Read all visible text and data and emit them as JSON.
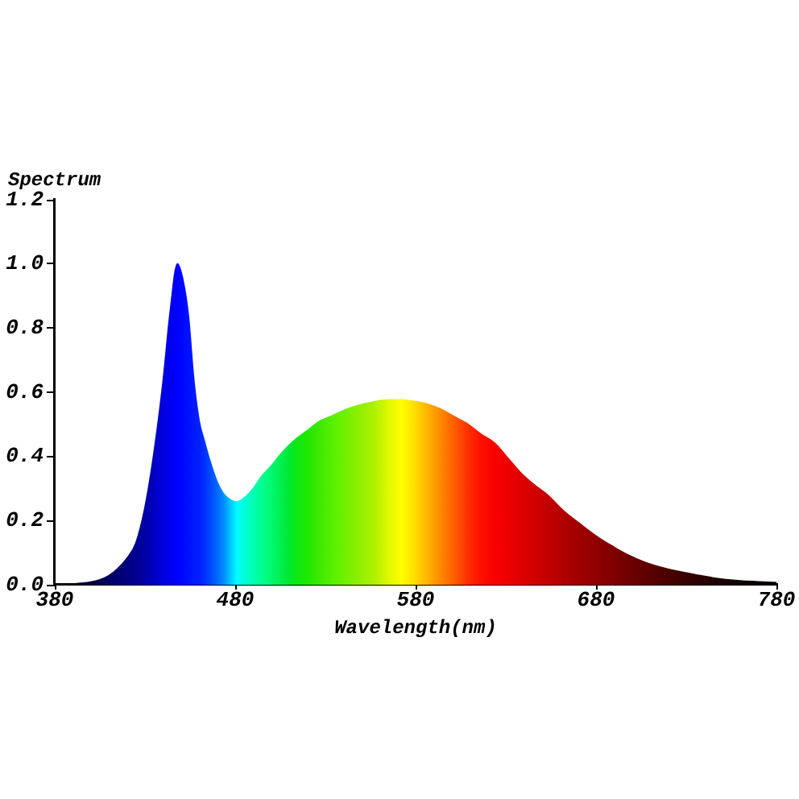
{
  "chart_data": {
    "type": "area",
    "xlabel": "Wavelength(nm)",
    "ylabel": "Spectrum",
    "x": [
      380,
      390,
      400,
      405,
      410,
      415,
      420,
      425,
      430,
      435,
      440,
      444,
      448,
      451,
      454,
      457,
      460,
      463,
      466,
      470,
      474,
      478,
      481,
      486,
      490,
      495,
      500,
      505,
      510,
      515,
      520,
      527,
      534,
      541,
      549,
      557,
      565,
      572,
      579,
      587,
      594,
      601,
      609,
      616,
      624,
      631,
      638,
      646,
      653,
      662,
      671,
      680,
      689,
      698,
      707,
      716,
      725,
      735,
      745,
      760,
      770,
      780
    ],
    "series": [
      {
        "values": [
          0,
          0.002,
          0.008,
          0.015,
          0.028,
          0.05,
          0.082,
          0.13,
          0.24,
          0.41,
          0.63,
          0.85,
          1.0,
          0.95,
          0.84,
          0.64,
          0.51,
          0.445,
          0.385,
          0.32,
          0.28,
          0.262,
          0.258,
          0.275,
          0.3,
          0.34,
          0.37,
          0.405,
          0.435,
          0.46,
          0.48,
          0.51,
          0.527,
          0.545,
          0.56,
          0.57,
          0.576,
          0.576,
          0.571,
          0.562,
          0.547,
          0.525,
          0.5,
          0.47,
          0.44,
          0.395,
          0.35,
          0.31,
          0.28,
          0.23,
          0.19,
          0.152,
          0.12,
          0.092,
          0.07,
          0.054,
          0.042,
          0.031,
          0.021,
          0.012,
          0.009,
          0.006
        ],
        "colors": [
          "#000010",
          "#000020",
          "#000040",
          "#000050",
          "#000060",
          "#000070",
          "#000080",
          "#000090",
          "#0000a8",
          "#0000c0",
          "#0000e0",
          "#0000f0",
          "#0000ff",
          "#0008ff",
          "#0010ff",
          "#0018ff",
          "#0020ff",
          "#0030ff",
          "#0048ff",
          "#0068ff",
          "#0090ff",
          "#00d0ff",
          "#00ffff",
          "#00ffd0",
          "#00ffb0",
          "#00ff90",
          "#00f870",
          "#00f050",
          "#00e830",
          "#10e810",
          "#20e800",
          "#40e800",
          "#58f000",
          "#70f000",
          "#90f000",
          "#b0f000",
          "#e0f800",
          "#ffff00",
          "#ffe000",
          "#ffb000",
          "#ff8800",
          "#ff6000",
          "#ff3000",
          "#ff1000",
          "#f80000",
          "#f00000",
          "#e00000",
          "#d00000",
          "#c40000",
          "#b00000",
          "#a00000",
          "#900000",
          "#800000",
          "#700000",
          "#600000",
          "#500000",
          "#400000",
          "#300000",
          "#200000",
          "#100000",
          "#080000",
          "#000000"
        ]
      }
    ],
    "xlim": [
      380,
      780
    ],
    "ylim": [
      0,
      1.2
    ],
    "xticks": [
      380,
      480,
      580,
      680,
      780
    ],
    "yticks": [
      {
        "value": 0,
        "label": "0.0"
      },
      0.2,
      0.4,
      0.6,
      0.8,
      {
        "value": 1,
        "label": "1.0"
      },
      1.2
    ]
  }
}
